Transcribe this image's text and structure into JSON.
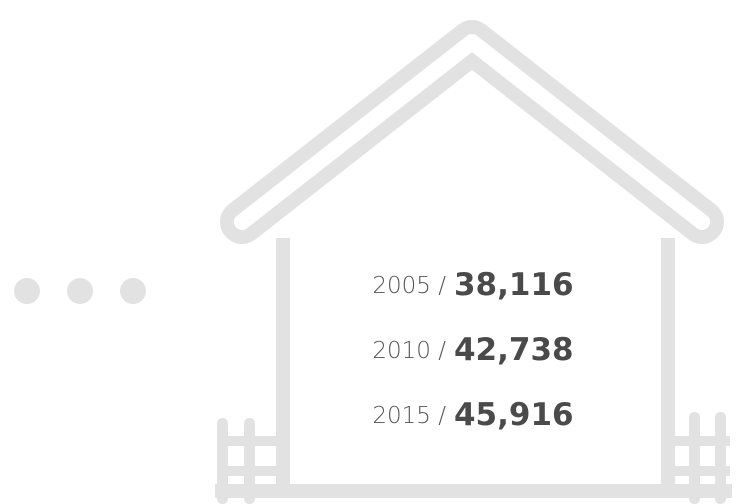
{
  "items": [
    {
      "label": "2005 /",
      "value": "38,116"
    },
    {
      "label": "2010 /",
      "value": "42,738"
    },
    {
      "label": "2015 /",
      "value": "45,916"
    }
  ]
}
